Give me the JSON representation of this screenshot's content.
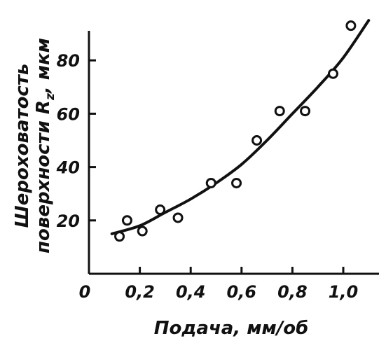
{
  "chart_data": {
    "type": "scatter",
    "xlabel": "Подача, мм/об",
    "ylabel_line1": "Шероховатость",
    "ylabel_line2_main": "поверхности  R",
    "ylabel_line2_sub": "z",
    "ylabel_line2_end": ", мкм",
    "xlim": [
      0,
      1.1
    ],
    "ylim": [
      0,
      95
    ],
    "x_ticks": [
      0,
      0.2,
      0.4,
      0.6,
      0.8,
      1.0
    ],
    "x_tick_labels": [
      "0",
      "0,2",
      "0,4",
      "0,6",
      "0,8",
      "1,0"
    ],
    "y_ticks": [
      20,
      40,
      60,
      80
    ],
    "y_tick_labels": [
      "20",
      "40",
      "60",
      "80"
    ],
    "series": [
      {
        "kind": "points",
        "marker": "open-circle",
        "x": [
          0.12,
          0.15,
          0.21,
          0.28,
          0.35,
          0.48,
          0.58,
          0.66,
          0.75,
          0.85,
          0.96,
          1.03
        ],
        "y": [
          14,
          20,
          16,
          24,
          21,
          34,
          34,
          50,
          61,
          61,
          75,
          93
        ]
      },
      {
        "kind": "fit-curve",
        "x": [
          0.09,
          0.2,
          0.3,
          0.4,
          0.5,
          0.6,
          0.7,
          0.8,
          0.9,
          1.0,
          1.1
        ],
        "y": [
          15,
          18,
          23,
          28,
          34,
          41,
          50,
          60,
          70,
          81,
          95
        ]
      }
    ],
    "grid": false,
    "legend": "none"
  }
}
